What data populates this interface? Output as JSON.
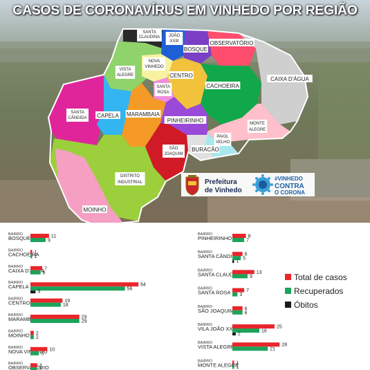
{
  "title": "CASOS DE CORONAVÍRUS EM VINHEDO POR REGIÃO",
  "map": {
    "regions": [
      {
        "label": "SANTA CLAUDINA",
        "color": "#2a2a2a"
      },
      {
        "label": "JOÃO XXIII",
        "color": "#1f5fd6"
      },
      {
        "label": "BOSQUE",
        "color": "#7a3fc4"
      },
      {
        "label": "OBSERVATÓRIO",
        "color": "#ff4d6d"
      },
      {
        "label": "VISTA ALEGRE",
        "color": "#8fd36a"
      },
      {
        "label": "NOVA VINHEDO",
        "color": "#f6f2a0"
      },
      {
        "label": "CENTRO",
        "color": "#f3c23d"
      },
      {
        "label": "SANTA ROSA",
        "color": "#f08de0"
      },
      {
        "label": "CAIXA D'ÁGUA",
        "color": "#cfcfcf"
      },
      {
        "label": "CACHOEIRA",
        "color": "#10a84a"
      },
      {
        "label": "SANTA CÂNDIDA",
        "color": "#e0259a"
      },
      {
        "label": "CAPELA",
        "color": "#33b5f2"
      },
      {
        "label": "MARAMBAIA",
        "color": "#f59a27"
      },
      {
        "label": "PINHEIRINHO",
        "color": "#9b49d8"
      },
      {
        "label": "MONTE ALEGRE",
        "color": "#ffc0cb"
      },
      {
        "label": "PAIOL VELHO",
        "color": "#a8e8ee"
      },
      {
        "label": "SÃO JOAQUIM",
        "color": "#d01a26"
      },
      {
        "label": "BURACÃO",
        "color": "#e0e0e0"
      },
      {
        "label": "DISTRITO INDUSTRIAL",
        "color": "#9ccf3c"
      },
      {
        "label": "MOINHO",
        "color": "#f59fc3"
      }
    ],
    "prefeitura_line1": "Prefeitura",
    "prefeitura_line2": "de Vinhedo",
    "campaign_line1": "#VINHEDO",
    "campaign_line2": "CONTRA",
    "campaign_line3": "O CORONA"
  },
  "chart_data": {
    "type": "bar",
    "orientation": "horizontal",
    "bar_prefix": "BAIRRO",
    "series": [
      {
        "name": "Total de casos",
        "color": "#e8262b"
      },
      {
        "name": "Recuperados",
        "color": "#1ea35a"
      },
      {
        "name": "Óbitos",
        "color": "#1a1a1a"
      }
    ],
    "left_column": [
      {
        "bairro": "BOSQUE",
        "total": 11,
        "recuperados": 9,
        "obitos": 0
      },
      {
        "bairro": "CACHOEIRA",
        "total": 1,
        "recuperados": 1,
        "obitos": 0
      },
      {
        "bairro": "CAIXA D'ÁGUA",
        "total": 7,
        "recuperados": 6,
        "obitos": 0
      },
      {
        "bairro": "CAPELA",
        "total": 64,
        "recuperados": 56,
        "obitos": 3
      },
      {
        "bairro": "CENTRO",
        "total": 19,
        "recuperados": 18,
        "obitos": 0
      },
      {
        "bairro": "MARAMBAIA",
        "total": 29,
        "recuperados": 29,
        "obitos": 0
      },
      {
        "bairro": "MOINHO",
        "total": 2,
        "recuperados": 2,
        "obitos": 0
      },
      {
        "bairro": "NOVA VINHEDO",
        "total": 10,
        "recuperados": 5,
        "obitos": 0
      },
      {
        "bairro": "OBSERVATÓRIO",
        "total": 4,
        "recuperados": 4,
        "obitos": 0
      }
    ],
    "right_column": [
      {
        "bairro": "PINHEIRINHO",
        "total": 8,
        "recuperados": 7,
        "obitos": 0
      },
      {
        "bairro": "SANTA CÂNDIDA",
        "total": 6,
        "recuperados": 5,
        "obitos": 1
      },
      {
        "bairro": "SANTA CLAUDINA",
        "total": 13,
        "recuperados": 9,
        "obitos": 0
      },
      {
        "bairro": "SANTA ROSA",
        "total": 7,
        "recuperados": 3,
        "obitos": 0
      },
      {
        "bairro": "SÃO JOAQUIM",
        "total": 6,
        "recuperados": 6,
        "obitos": 0
      },
      {
        "bairro": "VILA JOÃO XXIII",
        "total": 25,
        "recuperados": 16,
        "obitos": 2
      },
      {
        "bairro": "VISTA ALEGRE",
        "total": 28,
        "recuperados": 21,
        "obitos": 0
      },
      {
        "bairro": "MONTE ALEGRE",
        "total": 1,
        "recuperados": 1,
        "obitos": 0
      }
    ]
  }
}
